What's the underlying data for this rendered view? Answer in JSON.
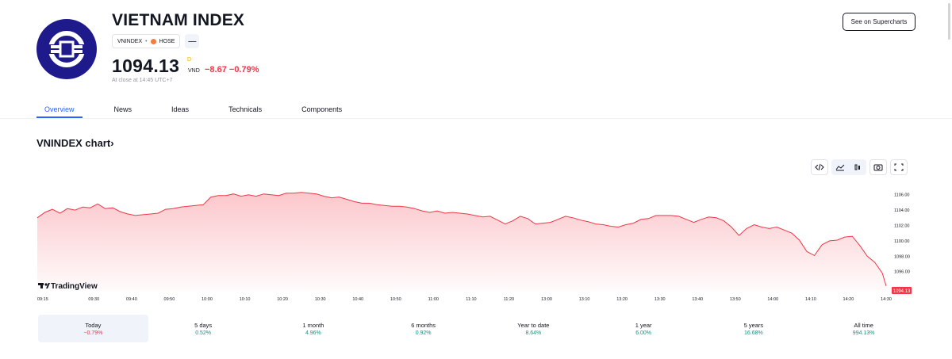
{
  "header": {
    "title": "VIETNAM INDEX",
    "symbol": "VNINDEX",
    "separator": "•",
    "exchange": "HOSE",
    "price": "1094.13",
    "price_mark": "D",
    "currency": "VND",
    "change": "−8.67 −0.79%",
    "close_note": "At close at 14:45 UTC+7",
    "supercharts_label": "See on Supercharts",
    "menu_glyph": "—"
  },
  "tabs": [
    {
      "label": "Overview",
      "active": true
    },
    {
      "label": "News",
      "active": false
    },
    {
      "label": "Ideas",
      "active": false
    },
    {
      "label": "Technicals",
      "active": false
    },
    {
      "label": "Components",
      "active": false
    }
  ],
  "chart_section": {
    "heading": "VNINDEX chart",
    "chevron": "›",
    "watermark": "TradingView"
  },
  "colors": {
    "accent": "#2962ff",
    "negative": "#f23645",
    "positive": "#089981",
    "line": "#f23645",
    "logo": "#1f1a8c"
  },
  "chart_data": {
    "type": "area",
    "title": "",
    "xlabel": "",
    "ylabel": "",
    "ylim": [
      1093.5,
      1107.0
    ],
    "yticks": [
      "1106.00",
      "1104.00",
      "1102.00",
      "1100.00",
      "1098.00",
      "1096.00"
    ],
    "last_label": "1094.13",
    "xticks": [
      {
        "label": "09:15",
        "t": 0
      },
      {
        "label": "09:30",
        "t": 15
      },
      {
        "label": "09:40",
        "t": 25
      },
      {
        "label": "09:50",
        "t": 35
      },
      {
        "label": "10:00",
        "t": 45
      },
      {
        "label": "10:10",
        "t": 55
      },
      {
        "label": "10:20",
        "t": 65
      },
      {
        "label": "10:30",
        "t": 75
      },
      {
        "label": "10:40",
        "t": 85
      },
      {
        "label": "10:50",
        "t": 95
      },
      {
        "label": "11:00",
        "t": 105
      },
      {
        "label": "11:10",
        "t": 115
      },
      {
        "label": "11:20",
        "t": 125
      },
      {
        "label": "13:00",
        "t": 135
      },
      {
        "label": "13:10",
        "t": 145
      },
      {
        "label": "13:20",
        "t": 155
      },
      {
        "label": "13:30",
        "t": 165
      },
      {
        "label": "13:40",
        "t": 175
      },
      {
        "label": "13:50",
        "t": 185
      },
      {
        "label": "14:00",
        "t": 195
      },
      {
        "label": "14:10",
        "t": 205
      },
      {
        "label": "14:20",
        "t": 215
      },
      {
        "label": "14:30",
        "t": 225
      }
    ],
    "series": [
      {
        "t": [
          0,
          2,
          4,
          6,
          8,
          10,
          12,
          14,
          16,
          18,
          20,
          22,
          24,
          26,
          28,
          30,
          32,
          34,
          36,
          38,
          40,
          42,
          44,
          46,
          48,
          50,
          52,
          54,
          56,
          58,
          60,
          62,
          64,
          66,
          68,
          70,
          72,
          74,
          76,
          78,
          80,
          82,
          84,
          86,
          88,
          90,
          92,
          94,
          96,
          98,
          100,
          102,
          104,
          106,
          108,
          110,
          112,
          114,
          116,
          118,
          120,
          122,
          124,
          126,
          128,
          130,
          132,
          134,
          136,
          138,
          140,
          142,
          144,
          146,
          148,
          150,
          152,
          154,
          156,
          158,
          160,
          162,
          164,
          166,
          168,
          170,
          172,
          174,
          176,
          178,
          180,
          182,
          184,
          186,
          188,
          190,
          192,
          194,
          196,
          198,
          200,
          202,
          204,
          206,
          208,
          210,
          212,
          214,
          216,
          218,
          220,
          222,
          224,
          225
        ],
        "values": [
          1103.0,
          1103.7,
          1104.1,
          1103.6,
          1104.2,
          1104.0,
          1104.4,
          1104.3,
          1104.8,
          1104.2,
          1104.3,
          1103.8,
          1103.5,
          1103.3,
          1103.4,
          1103.5,
          1103.6,
          1104.1,
          1104.2,
          1104.4,
          1104.5,
          1104.6,
          1104.7,
          1105.7,
          1105.9,
          1105.9,
          1106.1,
          1105.8,
          1106.0,
          1105.8,
          1106.1,
          1106.0,
          1105.9,
          1106.2,
          1106.2,
          1106.3,
          1106.2,
          1106.1,
          1105.8,
          1105.6,
          1105.7,
          1105.4,
          1105.1,
          1104.9,
          1104.9,
          1104.7,
          1104.6,
          1104.5,
          1104.5,
          1104.4,
          1104.2,
          1103.9,
          1103.7,
          1103.9,
          1103.6,
          1103.7,
          1103.6,
          1103.5,
          1103.3,
          1103.1,
          1103.2,
          1102.7,
          1102.2,
          1102.6,
          1103.2,
          1102.9,
          1102.2,
          1102.3,
          1102.4,
          1102.8,
          1103.2,
          1103.0,
          1102.7,
          1102.5,
          1102.2,
          1102.1,
          1101.9,
          1101.8,
          1102.1,
          1102.3,
          1102.8,
          1102.9,
          1103.3,
          1103.3,
          1103.3,
          1103.2,
          1102.8,
          1102.4,
          1102.8,
          1103.1,
          1103.0,
          1102.6,
          1101.8,
          1100.7,
          1101.6,
          1102.1,
          1101.8,
          1101.6,
          1101.8,
          1101.4,
          1101.0,
          1100.1,
          1098.6,
          1098.1,
          1099.5,
          1100.0,
          1100.1,
          1100.5,
          1100.6,
          1099.4,
          1098.0,
          1097.2,
          1095.8,
          1094.13
        ]
      }
    ],
    "grid": false,
    "legend": "none"
  },
  "periods": [
    {
      "label": "Today",
      "value": "−0.79%",
      "sign": "neg",
      "active": true
    },
    {
      "label": "5 days",
      "value": "0.52%",
      "sign": "pos",
      "active": false
    },
    {
      "label": "1 month",
      "value": "4.96%",
      "sign": "pos",
      "active": false
    },
    {
      "label": "6 months",
      "value": "0.92%",
      "sign": "pos",
      "active": false
    },
    {
      "label": "Year to date",
      "value": "8.64%",
      "sign": "pos",
      "active": false
    },
    {
      "label": "1 year",
      "value": "6.00%",
      "sign": "pos",
      "active": false
    },
    {
      "label": "5 years",
      "value": "16.68%",
      "sign": "pos",
      "active": false
    },
    {
      "label": "All time",
      "value": "994.13%",
      "sign": "pos",
      "active": false
    }
  ]
}
